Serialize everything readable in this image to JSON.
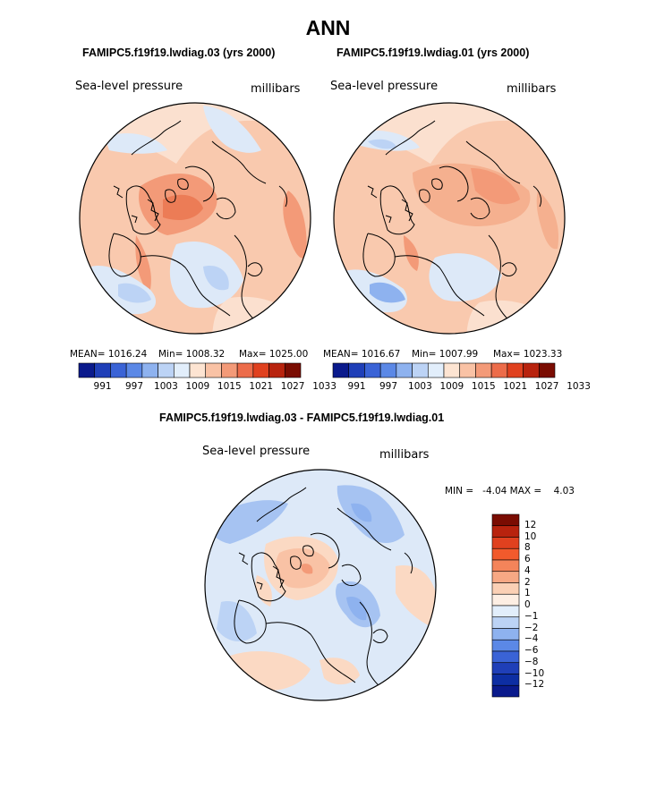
{
  "title": "ANN",
  "panels": [
    {
      "case_title": "FAMIPC5.f19f19.lwdiag.03 (yrs 2000)",
      "variable": "Sea-level pressure",
      "units": "millibars",
      "stats": {
        "mean": "MEAN= 1016.24",
        "min": "Min= 1008.32",
        "max": "Max= 1025.00"
      }
    },
    {
      "case_title": "FAMIPC5.f19f19.lwdiag.01 (yrs 2000)",
      "variable": "Sea-level pressure",
      "units": "millibars",
      "stats": {
        "mean": "MEAN= 1016.67",
        "min": "Min= 1007.99",
        "max": "Max= 1023.33"
      }
    }
  ],
  "colorbar_abs": {
    "labels": [
      "991",
      "997",
      "1003",
      "1009",
      "1015",
      "1021",
      "1027",
      "1033"
    ],
    "colors": [
      "#0a1a8c",
      "#1f3fb8",
      "#3a63d6",
      "#5b88e6",
      "#8eb2ef",
      "#bcd3f5",
      "#e2eefb",
      "#fde4d2",
      "#f9c2a5",
      "#f39a78",
      "#ec6c4a",
      "#e0411f",
      "#b8230e",
      "#7a0c02"
    ]
  },
  "diff_panel": {
    "title": "FAMIPC5.f19f19.lwdiag.03 - FAMIPC5.f19f19.lwdiag.01",
    "variable": "Sea-level pressure",
    "units": "millibars",
    "min_max": "MIN =   -4.04 MAX =    4.03"
  },
  "colorbar_diff": {
    "labels": [
      "12",
      "10",
      "8",
      "6",
      "4",
      "2",
      "1",
      "0",
      "-1",
      "-2",
      "-4",
      "-6",
      "-8",
      "-10",
      "-12"
    ],
    "colors": [
      "#7a0c02",
      "#b8230e",
      "#e0411f",
      "#f25a2c",
      "#f4845a",
      "#f7a884",
      "#fbd0b5",
      "#fdeee3",
      "#e2eefb",
      "#bcd3f5",
      "#8eb2ef",
      "#5b88e6",
      "#3a63d6",
      "#1f3fb8",
      "#0d2ea3",
      "#0a1a8c"
    ]
  },
  "chart_data": [
    {
      "type": "heatmap",
      "title": "FAMIPC5.f19f19.lwdiag.03 (yrs 2000)",
      "projection": "north polar stereographic",
      "variable": "Sea-level pressure",
      "units": "millibars",
      "mean": 1016.24,
      "min": 1008.32,
      "max": 1025.0,
      "color_levels": [
        991,
        997,
        1003,
        1009,
        1015,
        1021,
        1027,
        1033
      ]
    },
    {
      "type": "heatmap",
      "title": "FAMIPC5.f19f19.lwdiag.01 (yrs 2000)",
      "projection": "north polar stereographic",
      "variable": "Sea-level pressure",
      "units": "millibars",
      "mean": 1016.67,
      "min": 1007.99,
      "max": 1023.33,
      "color_levels": [
        991,
        997,
        1003,
        1009,
        1015,
        1021,
        1027,
        1033
      ]
    },
    {
      "type": "heatmap",
      "title": "FAMIPC5.f19f19.lwdiag.03 - FAMIPC5.f19f19.lwdiag.01",
      "projection": "north polar stereographic",
      "variable": "Sea-level pressure",
      "units": "millibars",
      "min": -4.04,
      "max": 4.03,
      "color_levels": [
        -12,
        -10,
        -8,
        -6,
        -4,
        -2,
        -1,
        0,
        1,
        2,
        4,
        6,
        8,
        10,
        12
      ]
    }
  ]
}
